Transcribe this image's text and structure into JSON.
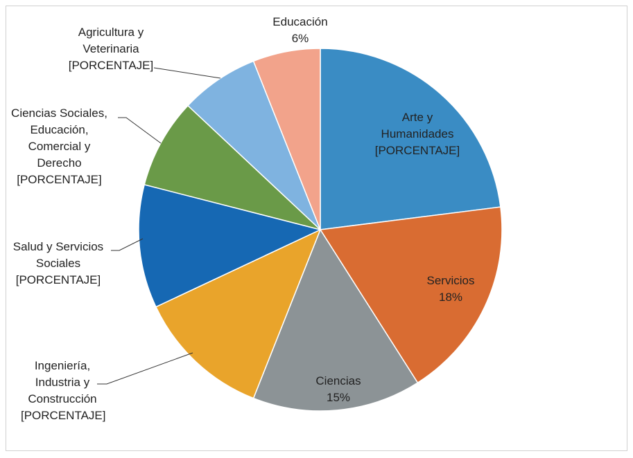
{
  "chart_data": {
    "type": "pie",
    "categories": [
      "Arte y Humanidades",
      "Servicios",
      "Ciencias",
      "Ingeniería, Industria y Construcción",
      "Salud y Servicios Sociales",
      "Ciencias Sociales, Educación, Comercial y Derecho",
      "Agricultura y Veterinaria",
      "Educación"
    ],
    "values": [
      23,
      18,
      15,
      12,
      11,
      8,
      7,
      6
    ],
    "value_labels": [
      "[PORCENTAJE]",
      "18%",
      "15%",
      "[PORCENTAJE]",
      "[PORCENTAJE]",
      "[PORCENTAJE]",
      "[PORCENTAJE]",
      "6%"
    ],
    "colors": [
      "#3a8cc4",
      "#d96c32",
      "#8c9396",
      "#e9a42b",
      "#1668b3",
      "#6a9a48",
      "#7fb3e0",
      "#f2a38b"
    ]
  }
}
